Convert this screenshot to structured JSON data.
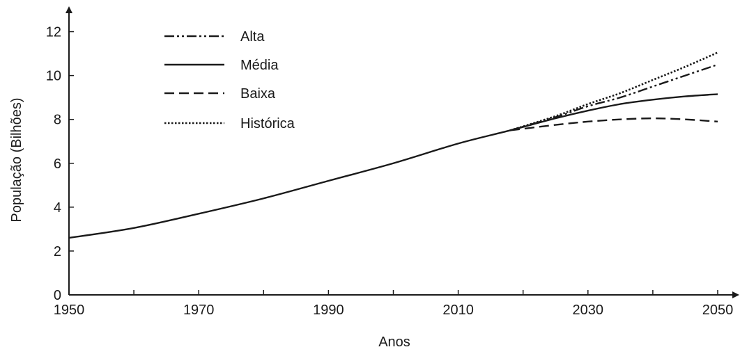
{
  "chart_data": {
    "type": "line",
    "xlabel": "Anos",
    "ylabel": "População (Bilhões)",
    "xlim": [
      1950,
      2050
    ],
    "ylim": [
      0,
      13
    ],
    "x_ticks": [
      "1950",
      "1970",
      "1990",
      "2010",
      "2030",
      "2050"
    ],
    "y_ticks": [
      "0",
      "2",
      "4",
      "6",
      "8",
      "10",
      "12"
    ],
    "grid": false,
    "legend_position": "top-left",
    "series": [
      {
        "name": "Alta",
        "style": "dash-dot-dot",
        "color": "#1a1a1a",
        "x": [
          2018,
          2025,
          2030,
          2035,
          2040,
          2045,
          2050
        ],
        "y": [
          7.5,
          8.1,
          8.6,
          9.0,
          9.5,
          10.0,
          10.5
        ]
      },
      {
        "name": "Média",
        "style": "solid",
        "color": "#1a1a1a",
        "x": [
          1950,
          1960,
          1970,
          1980,
          1990,
          2000,
          2010,
          2018,
          2025,
          2030,
          2035,
          2040,
          2045,
          2050
        ],
        "y": [
          2.6,
          3.05,
          3.7,
          4.4,
          5.2,
          6.0,
          6.9,
          7.5,
          8.05,
          8.4,
          8.7,
          8.9,
          9.05,
          9.15
        ]
      },
      {
        "name": "Baixa",
        "style": "dashed",
        "color": "#1a1a1a",
        "x": [
          2018,
          2025,
          2030,
          2035,
          2040,
          2045,
          2050
        ],
        "y": [
          7.5,
          7.75,
          7.9,
          8.0,
          8.05,
          8.0,
          7.9
        ]
      },
      {
        "name": "Histórica",
        "style": "dotted",
        "color": "#1a1a1a",
        "x": [
          2018,
          2025,
          2030,
          2035,
          2040,
          2045,
          2050
        ],
        "y": [
          7.5,
          8.15,
          8.7,
          9.2,
          9.8,
          10.4,
          11.05
        ]
      }
    ]
  }
}
